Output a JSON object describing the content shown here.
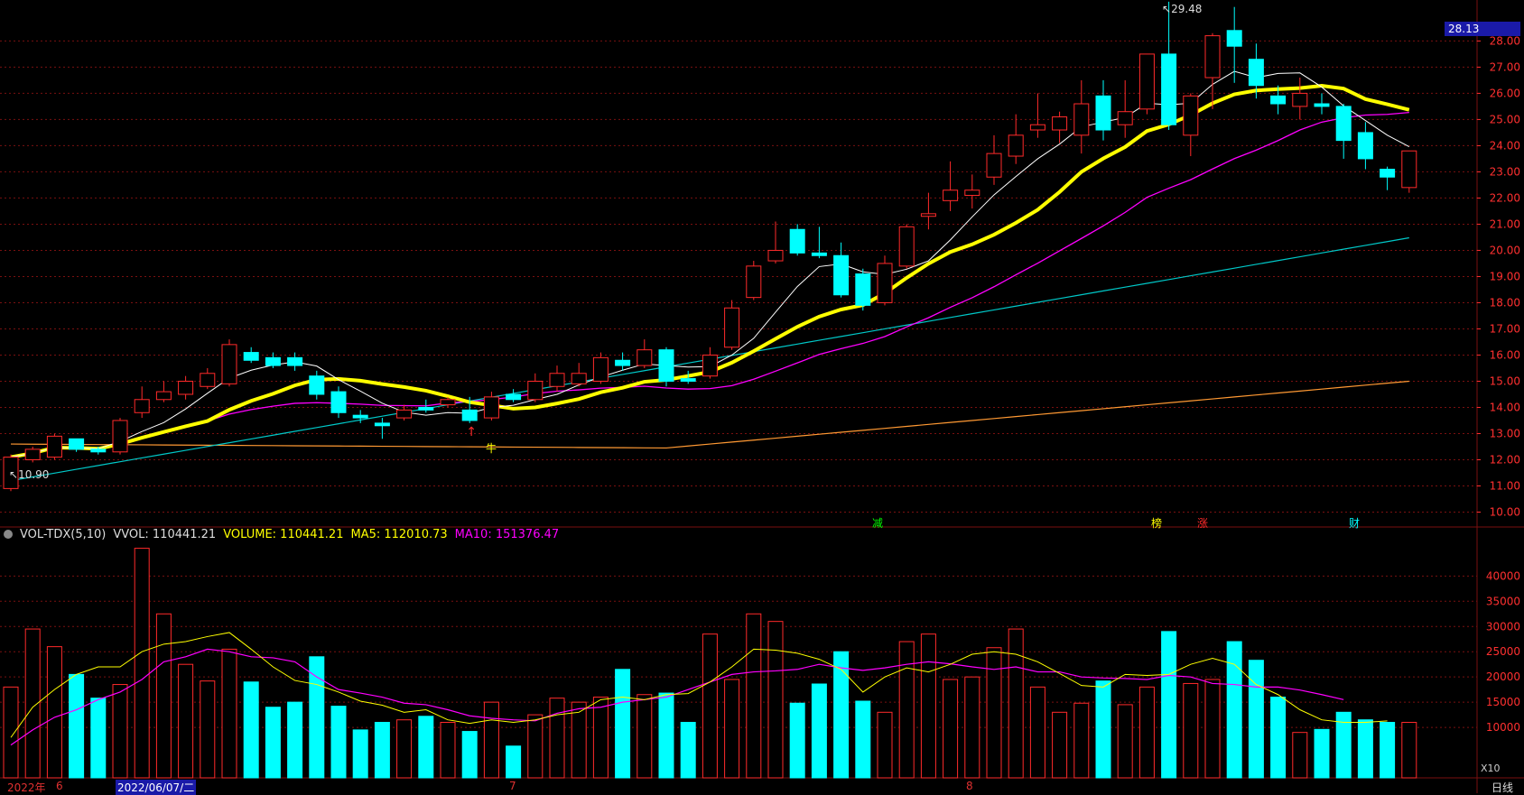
{
  "header": {
    "indicator": "VOL-TDX(5,10)",
    "vvol": "VVOL: 110441.21",
    "volume": "VOLUME: 110441.21",
    "ma5": "MA5: 112010.73",
    "ma10": "MA10: 151376.47"
  },
  "price_tag": "28.13",
  "high_label": "29.48",
  "low_label": "10.90",
  "axis_bottom": {
    "year": "2022年",
    "m6": "6",
    "date": "2022/06/07/二",
    "m7": "7",
    "m8": "8",
    "x10": "X10",
    "period": "日线"
  },
  "markers": {
    "niu": "牛",
    "jian": "减",
    "bang": "榜",
    "zhang": "涨",
    "cai": "财"
  },
  "colors": {
    "up": "#ff2a2a",
    "down": "#00ffff",
    "ma5": "#ffffff",
    "ma10": "#ffff00",
    "ma20": "#ff00ff",
    "ma60": "#00c8c8",
    "ma250": "#ff9933",
    "grid": "#7a1010"
  },
  "chart_data": [
    {
      "type": "candlestick",
      "price_axis": {
        "ylim": [
          9.5,
          28.6
        ],
        "ticks": [
          "10.00",
          "11.00",
          "12.00",
          "13.00",
          "14.00",
          "15.00",
          "16.00",
          "17.00",
          "18.00",
          "19.00",
          "20.00",
          "21.00",
          "22.00",
          "23.00",
          "24.00",
          "25.00",
          "26.00",
          "27.00",
          "28.00"
        ]
      },
      "candles": [
        [
          10.9,
          12.1,
          10.8,
          12.2
        ],
        [
          12.0,
          12.4,
          11.9,
          12.5
        ],
        [
          12.1,
          12.9,
          12.0,
          13.0
        ],
        [
          12.8,
          12.4,
          12.3,
          12.8
        ],
        [
          12.4,
          12.3,
          12.2,
          12.5
        ],
        [
          12.3,
          13.5,
          12.2,
          13.6
        ],
        [
          13.8,
          14.3,
          13.6,
          14.8
        ],
        [
          14.3,
          14.6,
          14.2,
          15.0
        ],
        [
          14.5,
          15.0,
          14.3,
          15.2
        ],
        [
          14.8,
          15.3,
          14.7,
          15.5
        ],
        [
          14.9,
          16.4,
          14.8,
          16.6
        ],
        [
          16.1,
          15.8,
          15.7,
          16.3
        ],
        [
          15.9,
          15.6,
          15.5,
          16.1
        ],
        [
          15.9,
          15.6,
          15.4,
          16.1
        ],
        [
          15.2,
          14.5,
          14.3,
          15.4
        ],
        [
          14.6,
          13.8,
          13.6,
          14.8
        ],
        [
          13.7,
          13.6,
          13.4,
          13.9
        ],
        [
          13.4,
          13.3,
          12.8,
          13.6
        ],
        [
          13.6,
          13.9,
          13.5,
          14.1
        ],
        [
          14.0,
          13.9,
          13.8,
          14.3
        ],
        [
          14.1,
          14.3,
          14.0,
          14.4
        ],
        [
          13.9,
          13.5,
          13.4,
          14.4
        ],
        [
          13.6,
          14.4,
          13.5,
          14.6
        ],
        [
          14.5,
          14.3,
          14.2,
          14.7
        ],
        [
          14.3,
          15.0,
          14.2,
          15.3
        ],
        [
          14.8,
          15.3,
          14.6,
          15.6
        ],
        [
          14.9,
          15.3,
          14.8,
          15.7
        ],
        [
          15.0,
          15.9,
          14.9,
          16.1
        ],
        [
          15.8,
          15.6,
          15.4,
          16.1
        ],
        [
          15.6,
          16.2,
          15.5,
          16.6
        ],
        [
          16.2,
          15.0,
          14.8,
          16.3
        ],
        [
          15.1,
          15.0,
          14.9,
          15.4
        ],
        [
          15.2,
          16.0,
          15.1,
          16.3
        ],
        [
          16.3,
          17.8,
          16.2,
          18.1
        ],
        [
          18.2,
          19.4,
          18.1,
          19.6
        ],
        [
          19.6,
          20.0,
          19.5,
          21.1
        ],
        [
          20.8,
          19.9,
          19.8,
          21.0
        ],
        [
          19.9,
          19.8,
          19.7,
          20.9
        ],
        [
          19.8,
          18.3,
          18.2,
          20.3
        ],
        [
          19.1,
          17.9,
          17.7,
          19.3
        ],
        [
          18.0,
          19.5,
          17.9,
          19.8
        ],
        [
          19.4,
          20.9,
          19.3,
          21.0
        ],
        [
          21.3,
          21.4,
          20.8,
          22.2
        ],
        [
          21.9,
          22.3,
          21.5,
          23.4
        ],
        [
          22.1,
          22.3,
          21.6,
          22.9
        ],
        [
          22.8,
          23.7,
          22.5,
          24.4
        ],
        [
          23.6,
          24.4,
          23.3,
          25.2
        ],
        [
          24.6,
          24.8,
          24.3,
          26.0
        ],
        [
          24.6,
          25.1,
          24.1,
          25.3
        ],
        [
          24.4,
          25.6,
          23.7,
          26.5
        ],
        [
          25.9,
          24.6,
          24.2,
          26.5
        ],
        [
          24.8,
          25.3,
          24.3,
          26.5
        ],
        [
          25.4,
          27.5,
          25.2,
          27.5
        ],
        [
          27.5,
          24.8,
          24.6,
          29.5
        ],
        [
          24.4,
          25.9,
          23.6,
          26.0
        ],
        [
          26.6,
          28.2,
          25.4,
          28.3
        ],
        [
          28.4,
          27.8,
          26.4,
          29.3
        ],
        [
          27.3,
          26.3,
          25.8,
          27.9
        ],
        [
          25.9,
          25.6,
          25.2,
          26.3
        ],
        [
          25.5,
          26.0,
          25.0,
          26.6
        ],
        [
          25.6,
          25.5,
          25.2,
          26.0
        ],
        [
          25.5,
          24.2,
          23.5,
          25.6
        ],
        [
          24.5,
          23.5,
          23.1,
          24.9
        ],
        [
          23.1,
          22.8,
          22.3,
          23.2
        ],
        [
          22.4,
          23.8,
          22.2,
          23.8
        ]
      ]
    },
    {
      "type": "bar",
      "y_axis": {
        "ylim": [
          0,
          46500
        ],
        "ticks": [
          "10000",
          "15000",
          "20000",
          "25000",
          "30000",
          "35000",
          "40000"
        ]
      },
      "volumes": [
        18000,
        29500,
        26000,
        20500,
        15800,
        18500,
        45500,
        32500,
        22500,
        19200,
        25500,
        19000,
        14000,
        15000,
        24000,
        14200,
        9500,
        11000,
        11500,
        12200,
        11000,
        9200,
        15000,
        6300,
        12500,
        15800,
        15000,
        16000,
        21500,
        16500,
        16800,
        11000,
        28500,
        19500,
        32500,
        31000,
        14800,
        18600,
        25000,
        15200,
        13000,
        27000,
        28500,
        19500,
        20000,
        25800,
        29500,
        18000,
        13000,
        14800,
        19200,
        14500,
        18000,
        29000,
        18700,
        19500,
        27000,
        23300,
        16000,
        9000,
        9600,
        13000,
        11500,
        11000,
        11000
      ],
      "ma5": [
        8000,
        14000,
        17500,
        20500,
        22000,
        22000,
        25000,
        26500,
        27000,
        28000,
        28800,
        25500,
        22000,
        19300,
        18500,
        17000,
        15200,
        14400,
        13000,
        13500,
        11500,
        10800,
        11500,
        11000,
        11500,
        12500,
        13000,
        15500,
        16000,
        15500,
        16500,
        16700,
        19000,
        22000,
        25500,
        25300,
        24700,
        23500,
        21500,
        17000,
        20000,
        21800,
        21000,
        22500,
        24500,
        25000,
        24500,
        23000,
        20700,
        18300,
        18000,
        20500,
        20300,
        20500,
        22500,
        23700,
        22500,
        18500,
        16500,
        13500,
        11500,
        11000,
        11000,
        11300,
        null
      ],
      "ma10": [
        6500,
        9500,
        12000,
        13500,
        15500,
        17000,
        19500,
        23000,
        24000,
        25500,
        25000,
        24000,
        23800,
        23000,
        20000,
        17500,
        16800,
        16000,
        14800,
        14500,
        13500,
        12300,
        11800,
        11500,
        11300,
        12800,
        13700,
        14000,
        15000,
        15500,
        16000,
        17500,
        19000,
        20500,
        21000,
        21200,
        21500,
        22500,
        21800,
        21300,
        21800,
        22500,
        23000,
        22600,
        22000,
        21500,
        22000,
        21000,
        21000,
        20000,
        19800,
        19700,
        19500,
        20300,
        20000,
        18700,
        18500,
        18000,
        18000,
        17400,
        16500,
        15500,
        null,
        null,
        null
      ]
    }
  ]
}
